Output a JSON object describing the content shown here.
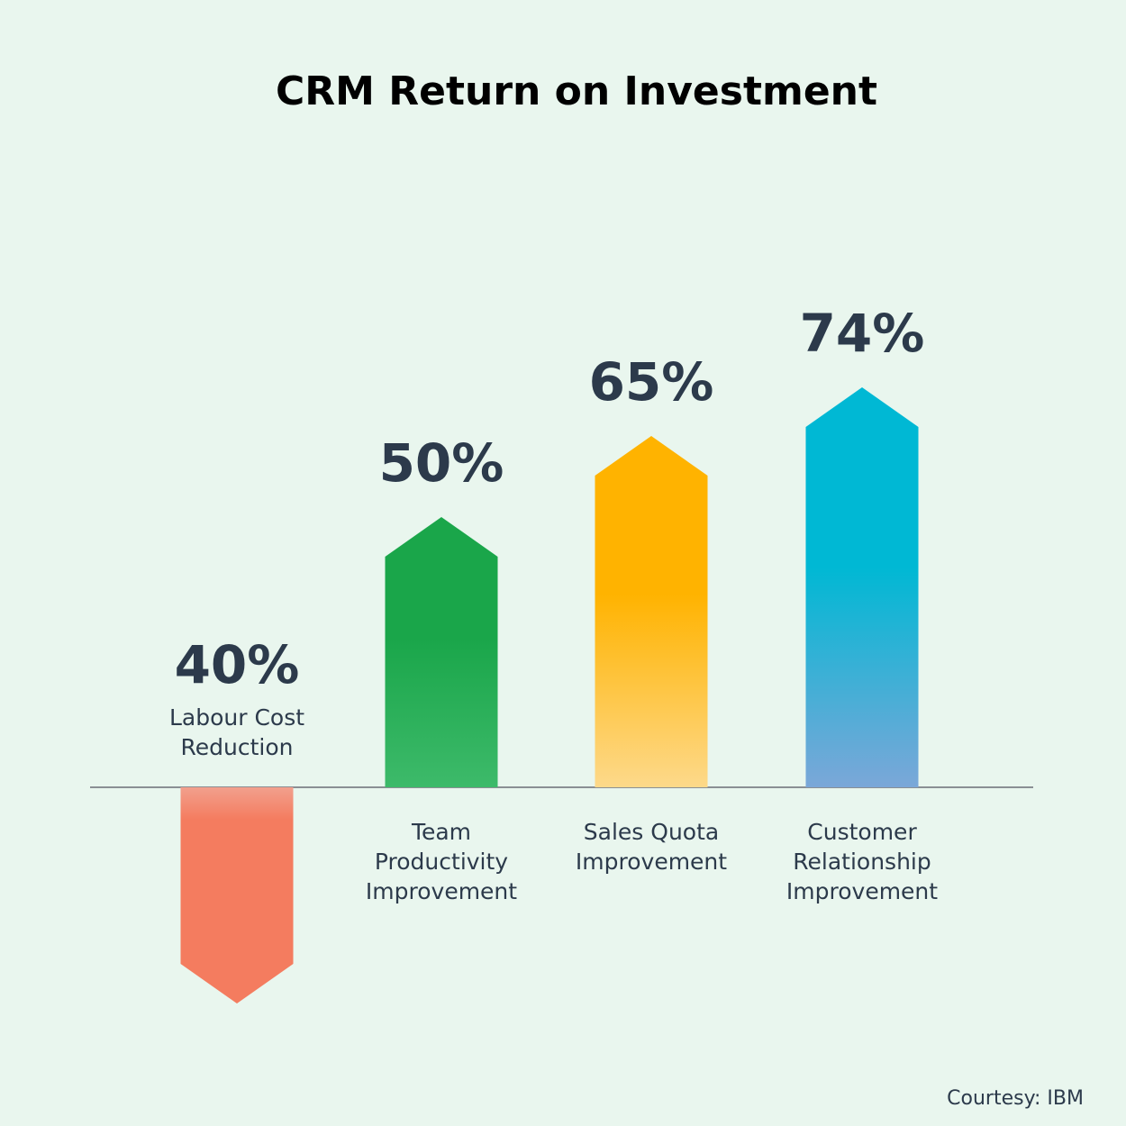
{
  "chart_data": {
    "type": "arrow-bar",
    "title": "CRM Return on Investment",
    "categories": [
      [
        "Labour Cost",
        "Reduction"
      ],
      [
        "Team",
        "Productivity",
        "Improvement"
      ],
      [
        "Sales Quota",
        "Improvement"
      ],
      [
        "Customer",
        "Relationship",
        "Improvement"
      ]
    ],
    "values": [
      40,
      50,
      65,
      74
    ],
    "value_labels": [
      "40%",
      "50%",
      "65%",
      "74%"
    ],
    "directions": [
      "down",
      "up",
      "up",
      "up"
    ],
    "colors": [
      [
        "#f2a08d",
        "#f47c5f"
      ],
      [
        "#1aa64a",
        "#3dba6a"
      ],
      [
        "#ffb300",
        "#fdd98a"
      ],
      [
        "#00b8d4",
        "#7ba7d8"
      ]
    ],
    "source": "Courtesy: IBM"
  }
}
